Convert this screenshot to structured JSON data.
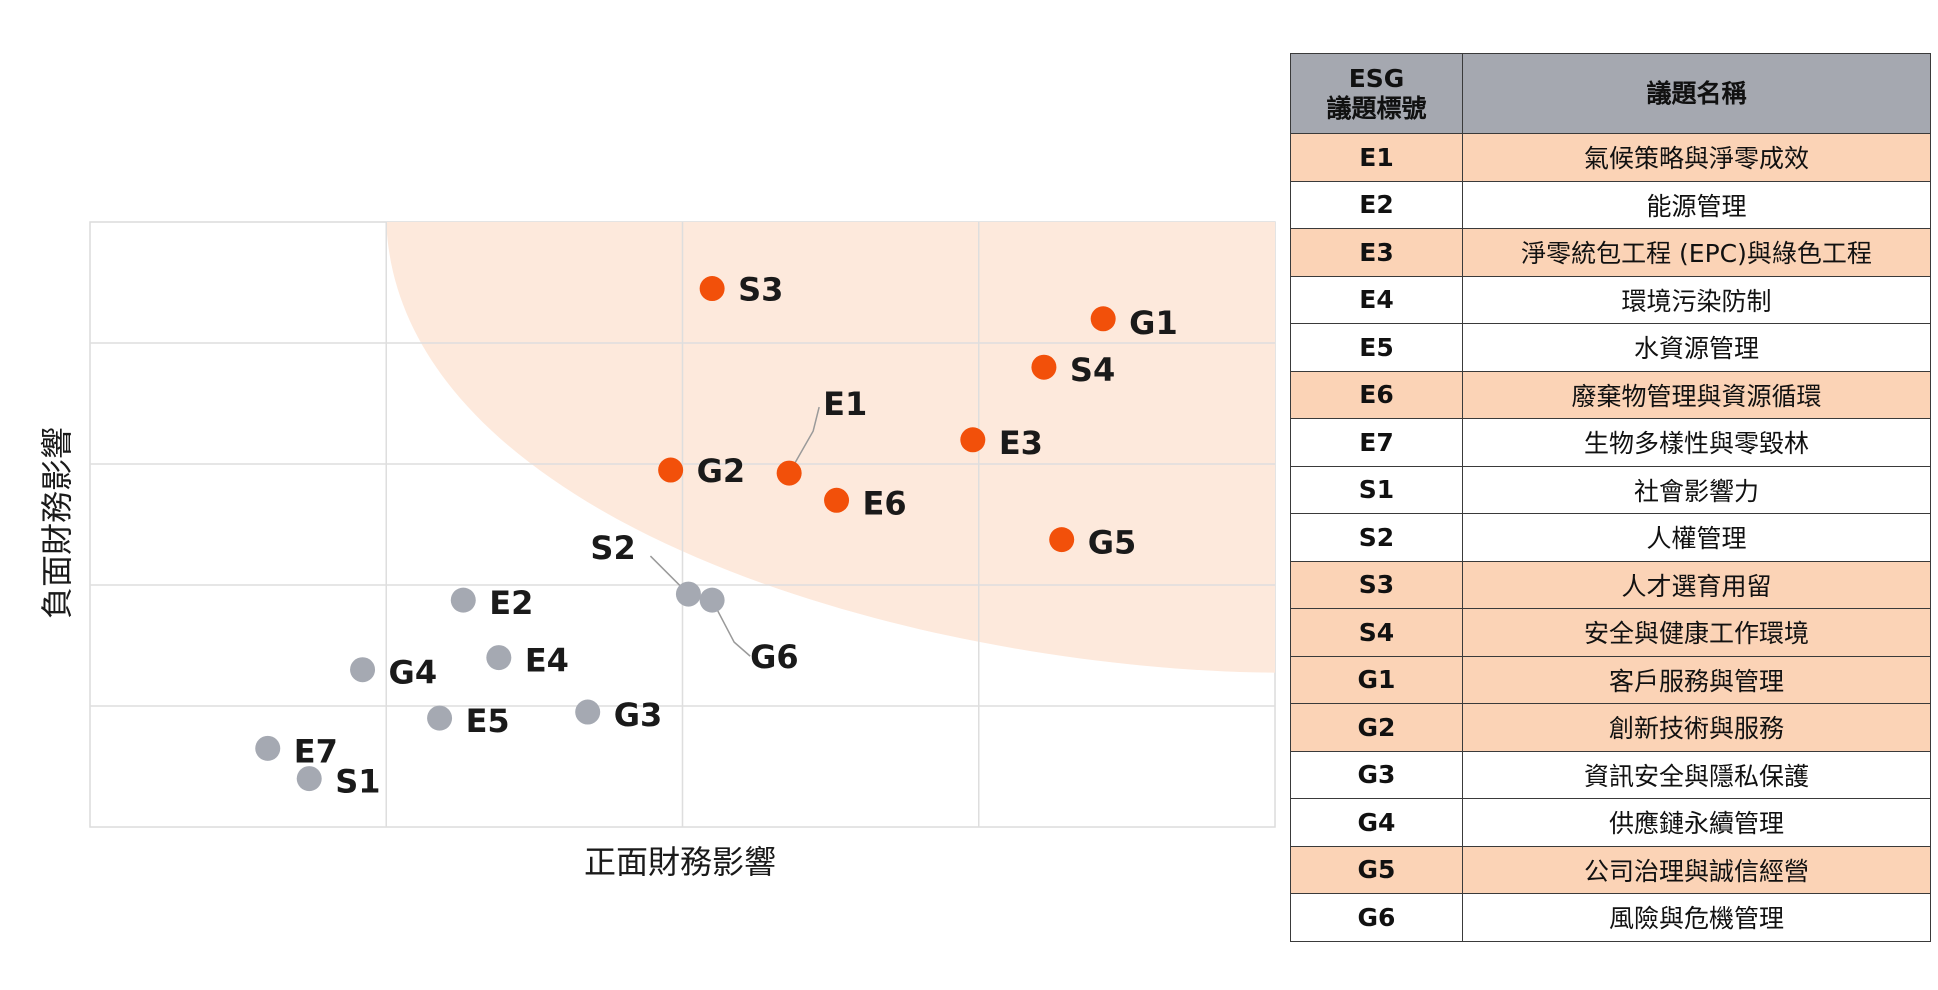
{
  "chart_data": {
    "type": "scatter",
    "xlabel": "正面財務影響",
    "ylabel": "負面財務影響",
    "xlim": [
      0,
      10
    ],
    "ylim": [
      0,
      10
    ],
    "grid": true,
    "highlight_color": "#fde9dc",
    "colors": {
      "material": "#f2500a",
      "other": "#a5a9b2"
    },
    "points": [
      {
        "label": "S3",
        "x": 5.25,
        "y": 8.9,
        "group": "material"
      },
      {
        "label": "G1",
        "x": 8.55,
        "y": 8.4,
        "group": "material"
      },
      {
        "label": "S4",
        "x": 8.05,
        "y": 7.6,
        "group": "material"
      },
      {
        "label": "E1",
        "x": 5.9,
        "y": 5.85,
        "group": "material"
      },
      {
        "label": "E3",
        "x": 7.45,
        "y": 6.4,
        "group": "material"
      },
      {
        "label": "G2",
        "x": 4.9,
        "y": 5.9,
        "group": "material"
      },
      {
        "label": "E6",
        "x": 6.3,
        "y": 5.4,
        "group": "material"
      },
      {
        "label": "G5",
        "x": 8.2,
        "y": 4.75,
        "group": "material"
      },
      {
        "label": "S2",
        "x": 5.05,
        "y": 3.85,
        "group": "other"
      },
      {
        "label": "G6",
        "x": 5.25,
        "y": 3.75,
        "group": "other"
      },
      {
        "label": "E2",
        "x": 3.15,
        "y": 3.75,
        "group": "other"
      },
      {
        "label": "E4",
        "x": 3.45,
        "y": 2.8,
        "group": "other"
      },
      {
        "label": "G4",
        "x": 2.3,
        "y": 2.6,
        "group": "other"
      },
      {
        "label": "E5",
        "x": 2.95,
        "y": 1.8,
        "group": "other"
      },
      {
        "label": "G3",
        "x": 4.2,
        "y": 1.9,
        "group": "other"
      },
      {
        "label": "E7",
        "x": 1.5,
        "y": 1.3,
        "group": "other"
      },
      {
        "label": "S1",
        "x": 1.85,
        "y": 0.8,
        "group": "other"
      }
    ]
  },
  "table": {
    "header": {
      "code": "ESG\n議題標號",
      "name": "議題名稱"
    },
    "rows": [
      {
        "code": "E1",
        "name": "氣候策略與淨零成效",
        "highlight": true
      },
      {
        "code": "E2",
        "name": "能源管理",
        "highlight": false
      },
      {
        "code": "E3",
        "name": "淨零統包工程 (EPC)與綠色工程",
        "highlight": true
      },
      {
        "code": "E4",
        "name": "環境污染防制",
        "highlight": false
      },
      {
        "code": "E5",
        "name": "水資源管理",
        "highlight": false
      },
      {
        "code": "E6",
        "name": "廢棄物管理與資源循環",
        "highlight": true
      },
      {
        "code": "E7",
        "name": "生物多樣性與零毀林",
        "highlight": false
      },
      {
        "code": "S1",
        "name": "社會影響力",
        "highlight": false
      },
      {
        "code": "S2",
        "name": "人權管理",
        "highlight": false
      },
      {
        "code": "S3",
        "name": "人才選育用留",
        "highlight": true
      },
      {
        "code": "S4",
        "name": "安全與健康工作環境",
        "highlight": true
      },
      {
        "code": "G1",
        "name": "客戶服務與管理",
        "highlight": true
      },
      {
        "code": "G2",
        "name": "創新技術與服務",
        "highlight": true
      },
      {
        "code": "G3",
        "name": "資訊安全與隱私保護",
        "highlight": false
      },
      {
        "code": "G4",
        "name": "供應鏈永續管理",
        "highlight": false
      },
      {
        "code": "G5",
        "name": "公司治理與誠信經營",
        "highlight": true
      },
      {
        "code": "G6",
        "name": "風險與危機管理",
        "highlight": false
      }
    ]
  }
}
